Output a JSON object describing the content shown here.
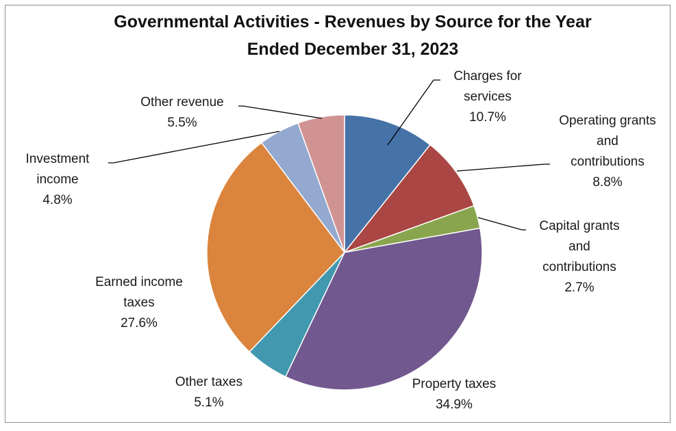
{
  "chart_data": {
    "type": "pie",
    "title_lines": [
      "Governmental Activities - Revenues by Source for the Year",
      "Ended December 31, 2023"
    ],
    "slices": [
      {
        "label_lines": [
          "Charges for",
          "services"
        ],
        "value": 10.7,
        "value_label": "10.7%",
        "color": "#4572a7"
      },
      {
        "label_lines": [
          "Operating grants",
          "and",
          "contributions"
        ],
        "value": 8.8,
        "value_label": "8.8%",
        "color": "#aa4643"
      },
      {
        "label_lines": [
          "Capital grants",
          "and",
          "contributions"
        ],
        "value": 2.7,
        "value_label": "2.7%",
        "color": "#89a54e"
      },
      {
        "label_lines": [
          "Property taxes"
        ],
        "value": 34.9,
        "value_label": "34.9%",
        "color": "#71588f"
      },
      {
        "label_lines": [
          "Other taxes"
        ],
        "value": 5.1,
        "value_label": "5.1%",
        "color": "#4198af"
      },
      {
        "label_lines": [
          "Earned income",
          "taxes"
        ],
        "value": 27.6,
        "value_label": "27.6%",
        "color": "#db843d"
      },
      {
        "label_lines": [
          "Investment",
          "income"
        ],
        "value": 4.8,
        "value_label": "4.8%",
        "color": "#93a9cf"
      },
      {
        "label_lines": [
          "Other revenue"
        ],
        "value": 5.5,
        "value_label": "5.5%",
        "color": "#d19392"
      }
    ],
    "legend": "none",
    "start_angle": "12 o'clock",
    "direction": "clockwise"
  }
}
